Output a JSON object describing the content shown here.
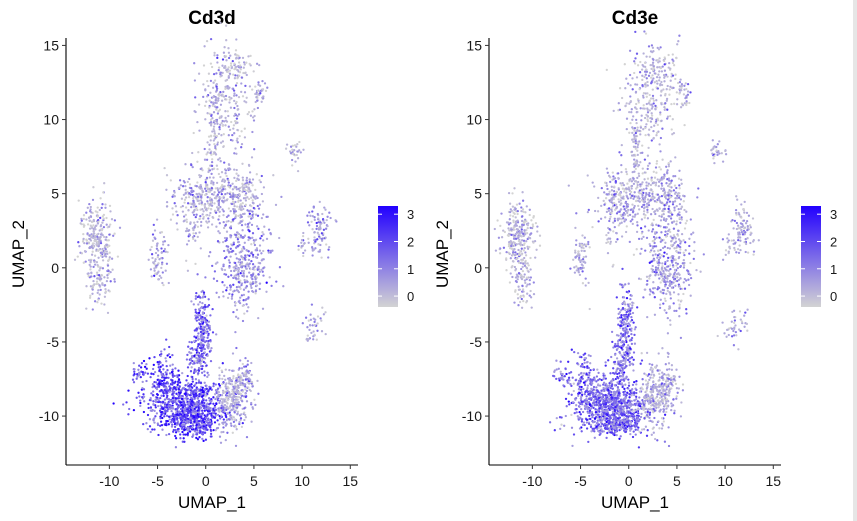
{
  "chart_data": [
    {
      "type": "scatter",
      "title": "Cd3d",
      "xlabel": "UMAP_1",
      "ylabel": "UMAP_2",
      "xlim": [
        -14.5,
        15.8
      ],
      "ylim": [
        -13.3,
        15.5
      ],
      "xticks": [
        -10,
        -5,
        0,
        5,
        10,
        15
      ],
      "yticks": [
        -10,
        -5,
        0,
        5,
        10,
        15
      ],
      "grid": false,
      "legend": {
        "position": "right",
        "ticks": [
          0,
          1,
          2,
          3
        ],
        "range": [
          -0.4,
          3.3
        ],
        "low_color": "#d3d3d3",
        "high_color": "#2200ff"
      },
      "expression_levels": {
        "bottom_cluster": 2.3,
        "stem": 1.7,
        "right_of_bottom": 0.4,
        "center": 0.3,
        "center_right": 0.8,
        "top": 0.1,
        "left": 0.1,
        "small_groups": 0.35
      }
    },
    {
      "type": "scatter",
      "title": "Cd3e",
      "xlabel": "UMAP_1",
      "ylabel": "UMAP_2",
      "xlim": [
        -14.5,
        15.8
      ],
      "ylim": [
        -13.3,
        15.5
      ],
      "xticks": [
        -10,
        -5,
        0,
        5,
        10,
        15
      ],
      "yticks": [
        -10,
        -5,
        0,
        5,
        10,
        15
      ],
      "grid": false,
      "legend": {
        "position": "right",
        "ticks": [
          0,
          1,
          2,
          3
        ],
        "range": [
          -0.4,
          3.3
        ],
        "low_color": "#d3d3d3",
        "high_color": "#2200ff"
      },
      "expression_levels": {
        "bottom_cluster": 1.7,
        "stem": 1.4,
        "right_of_bottom": 0.3,
        "center": 0.3,
        "center_right": 0.6,
        "top": 0.1,
        "left": 0.1,
        "small_groups": 0.3
      }
    }
  ]
}
